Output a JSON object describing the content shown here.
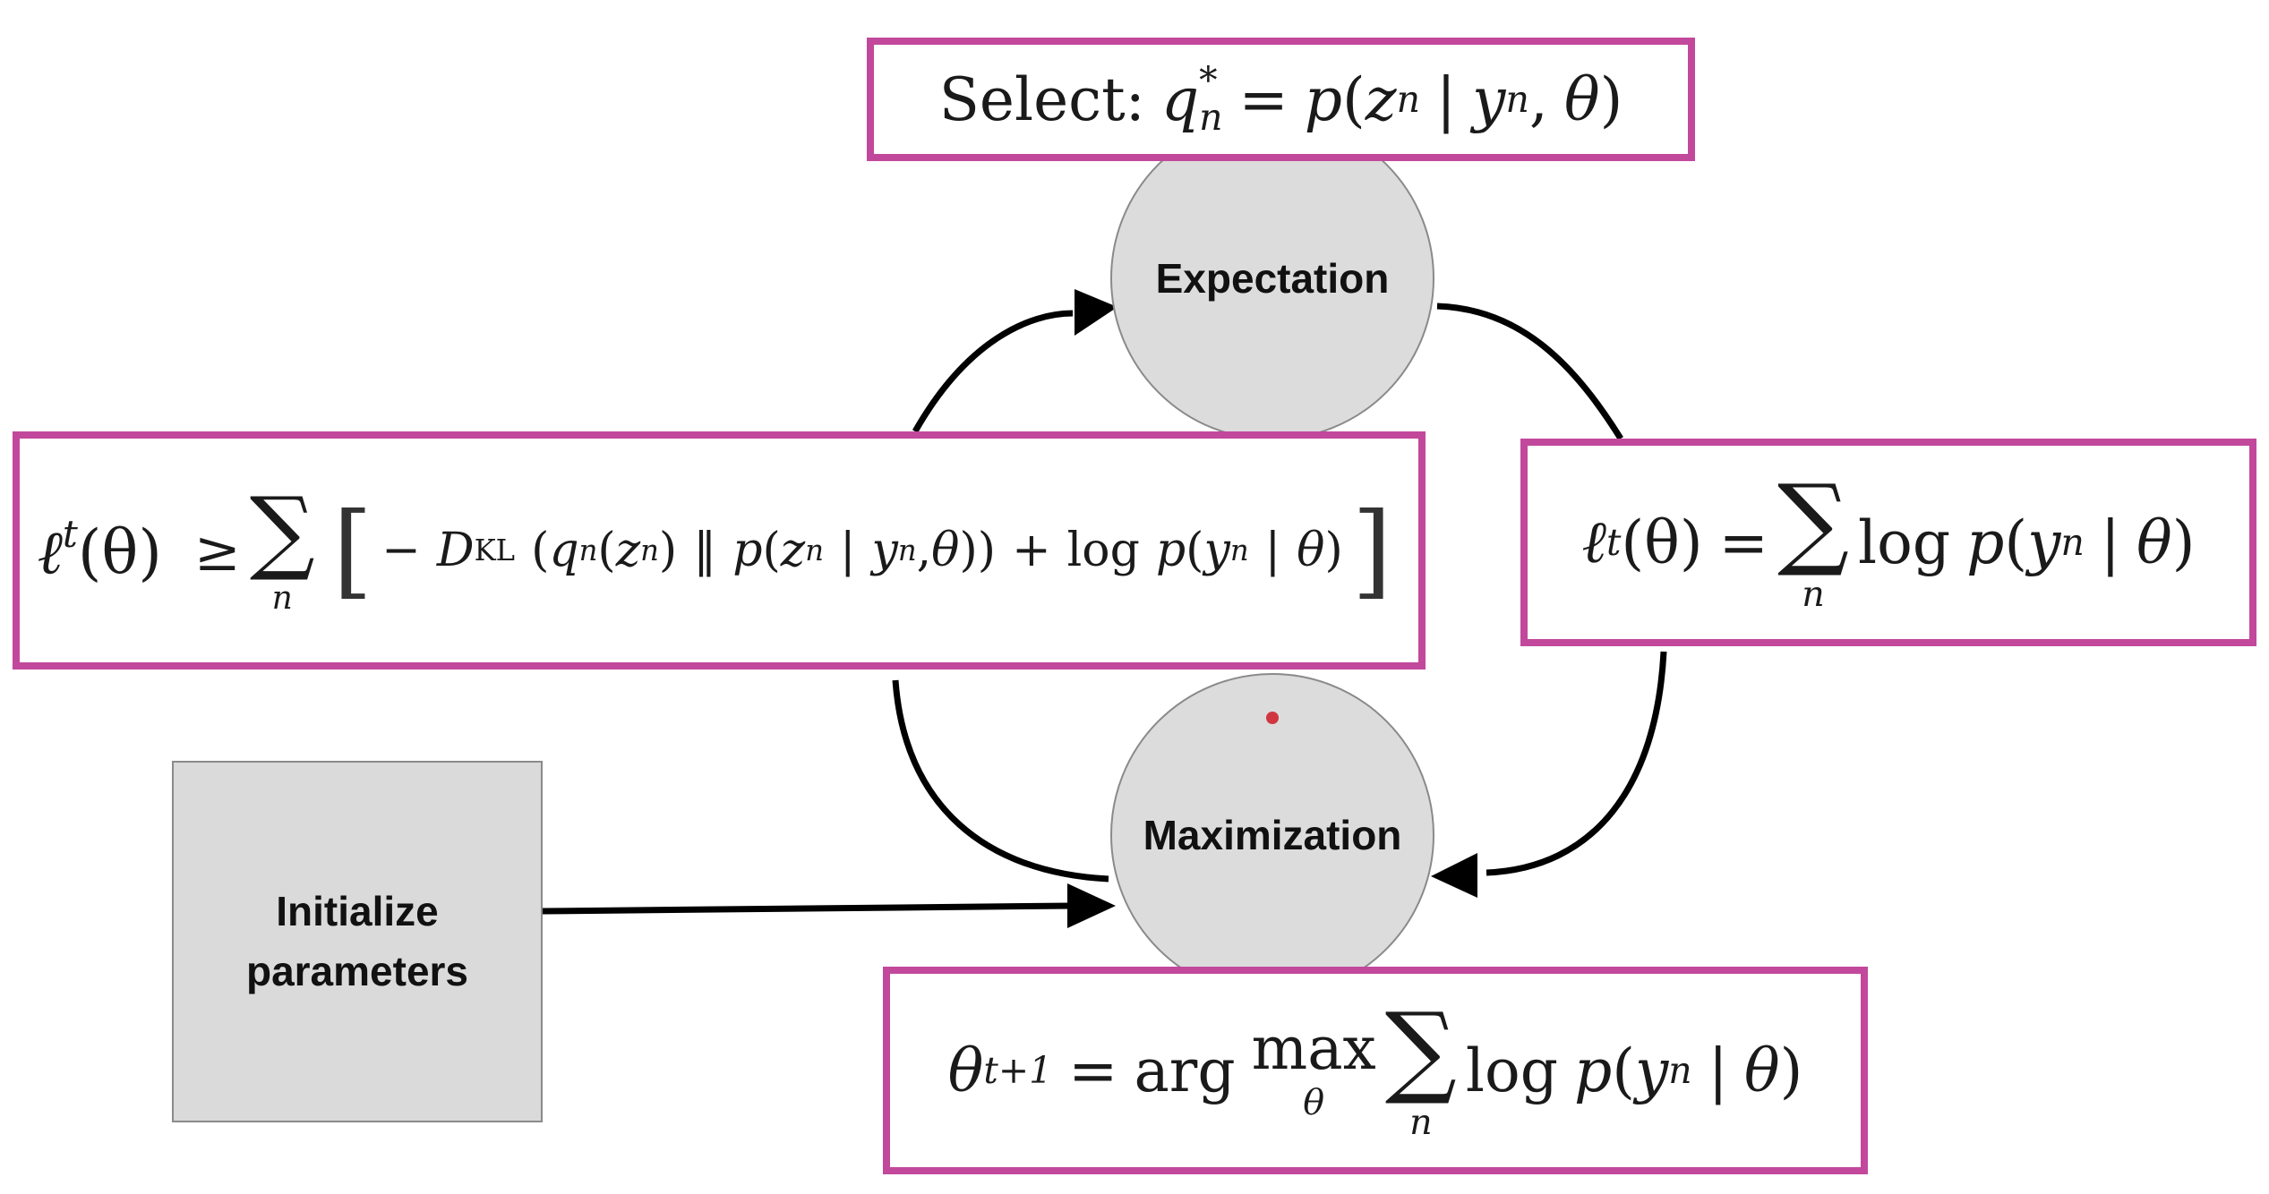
{
  "nodes": {
    "expectation": "Expectation",
    "maximization": "Maximization",
    "initialize_line1": "Initialize",
    "initialize_line2": "parameters"
  },
  "formulas": {
    "select": {
      "prefix": "Select:",
      "q": "q",
      "q_sup": "*",
      "q_sub": "n",
      "eq": "=",
      "p": "p",
      "open": "(",
      "z": "z",
      "z_sub": "n",
      "bar": "|",
      "y": "y",
      "y_sub": "n",
      "comma": ",",
      "theta": "θ",
      "close": ")"
    },
    "elbo": {
      "ell": "ℓ",
      "ell_sup": "t",
      "arg": "(θ)",
      "geq": "≥",
      "sum": "∑",
      "sum_sub": "n",
      "lbrack": "[",
      "minus": "−",
      "D": "D",
      "D_sub": "KL",
      "q_open": "(",
      "q": "q",
      "q_sub": "n",
      "qz_open": "(",
      "z": "z",
      "z_sub": "n",
      "qz_close": ")",
      "parallel": "‖",
      "p": "p",
      "p_open": "(",
      "z2": "z",
      "z2_sub": "n",
      "bar": "|",
      "y": "y",
      "y_sub": "n",
      "comma": ",",
      "theta": "θ",
      "close2": "))",
      "plus": "+",
      "log": "log",
      "p2": "p",
      "open3": "(",
      "y2": "y",
      "y2_sub": "n",
      "bar2": "|",
      "theta2": "θ",
      "close3": ")",
      "rbrack": "]"
    },
    "loglik": {
      "ell": "ℓ",
      "ell_sup": "t",
      "arg": "(θ)",
      "eq": "=",
      "sum": "∑",
      "sum_sub": "n",
      "log": "log",
      "p": "p",
      "open": "(",
      "y": "y",
      "y_sub": "n",
      "bar": "|",
      "theta": "θ",
      "close": ")"
    },
    "update": {
      "theta": "θ",
      "theta_sup": "t+1",
      "eq": "=",
      "arg": "arg",
      "max": "max",
      "max_sub": "θ",
      "sum": "∑",
      "sum_sub": "n",
      "log": "log",
      "p": "p",
      "open": "(",
      "y": "y",
      "y_sub": "n",
      "bar": "|",
      "theta2": "θ",
      "close": ")"
    }
  },
  "colors": {
    "box_border": "#c2489c",
    "node_fill": "#dcdcdc",
    "arrow": "#000000"
  }
}
